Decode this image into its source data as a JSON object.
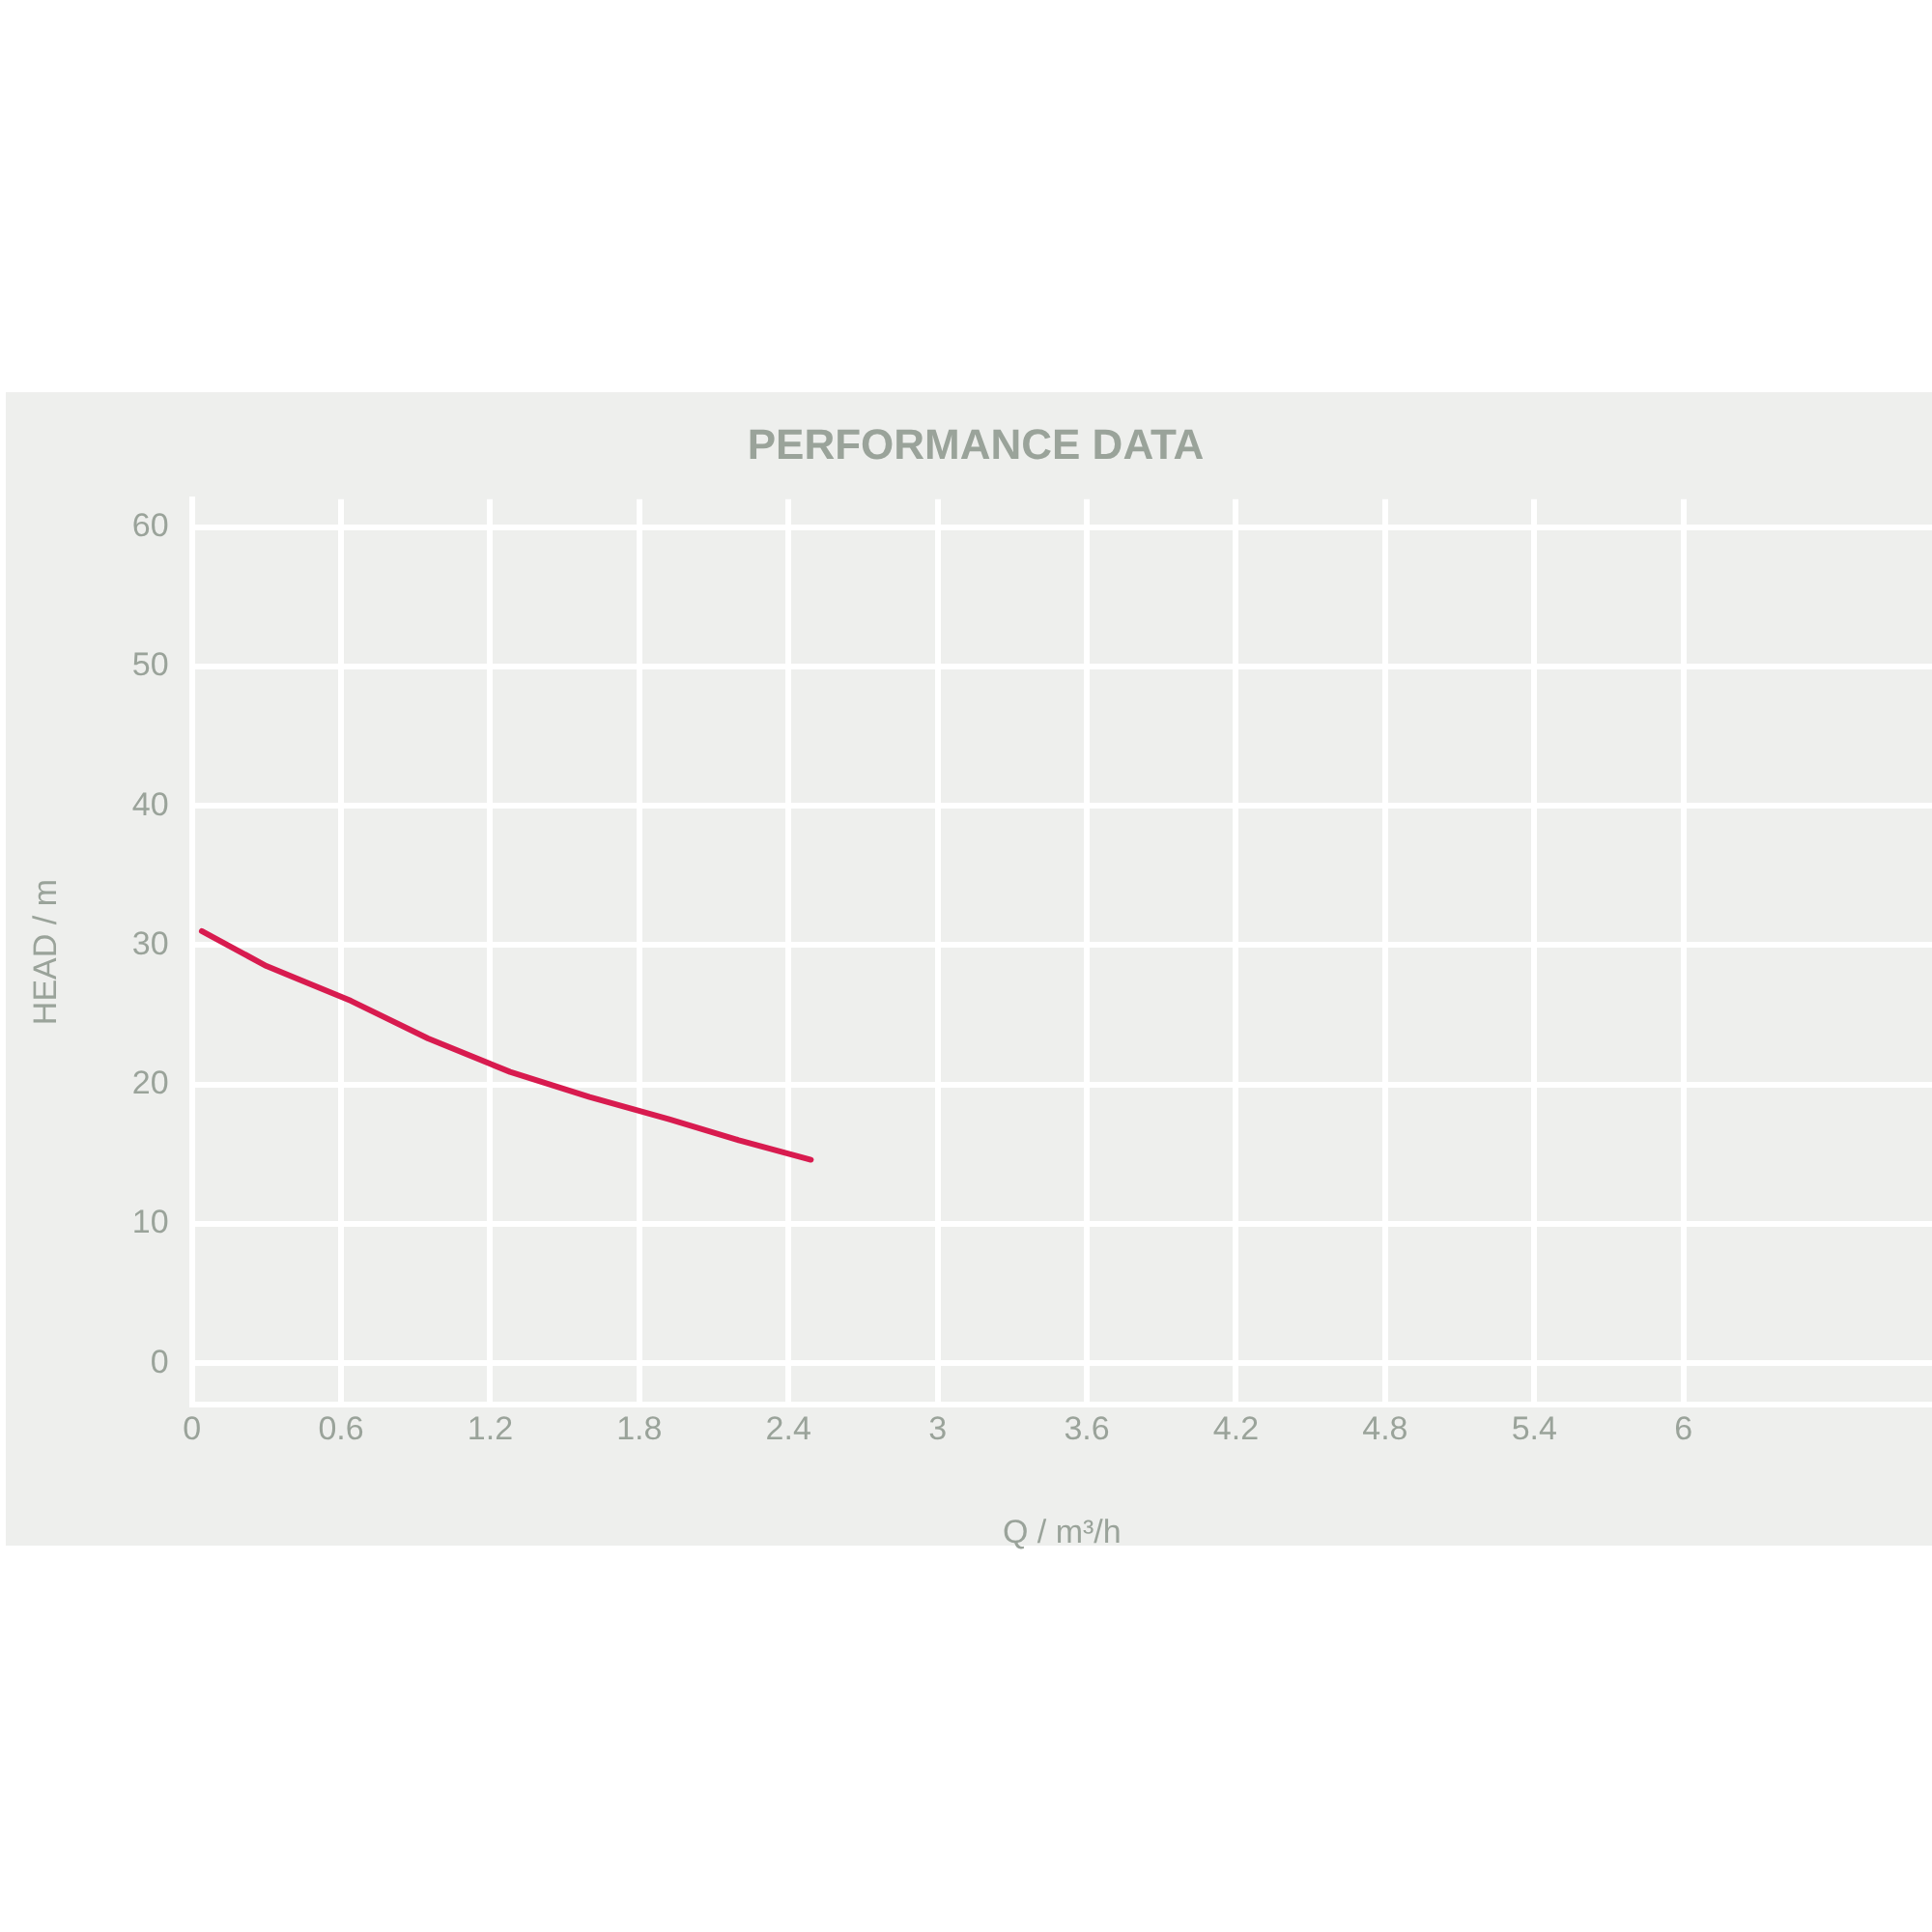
{
  "chart_data": {
    "type": "line",
    "title": "PERFORMANCE DATA",
    "xlabel": "Q / m³/h",
    "ylabel": "HEAD / m",
    "xlim": [
      0,
      7
    ],
    "xticks": [
      0,
      0.6,
      1.2,
      1.8,
      2.4,
      3,
      3.6,
      4.2,
      4.8,
      5.4,
      6
    ],
    "ylim": [
      -3,
      62
    ],
    "yticks": [
      0,
      10,
      20,
      30,
      40,
      50,
      60
    ],
    "grid": true,
    "legend": false,
    "marker": "none",
    "line_style": "solid",
    "series": [
      {
        "color": "#d81b4f",
        "x": [
          0.04,
          0.3,
          0.64,
          0.95,
          1.28,
          1.6,
          1.92,
          2.2,
          2.49
        ],
        "values": [
          31,
          28.5,
          26,
          23.3,
          20.9,
          19.1,
          17.5,
          16,
          14.6
        ]
      }
    ]
  }
}
